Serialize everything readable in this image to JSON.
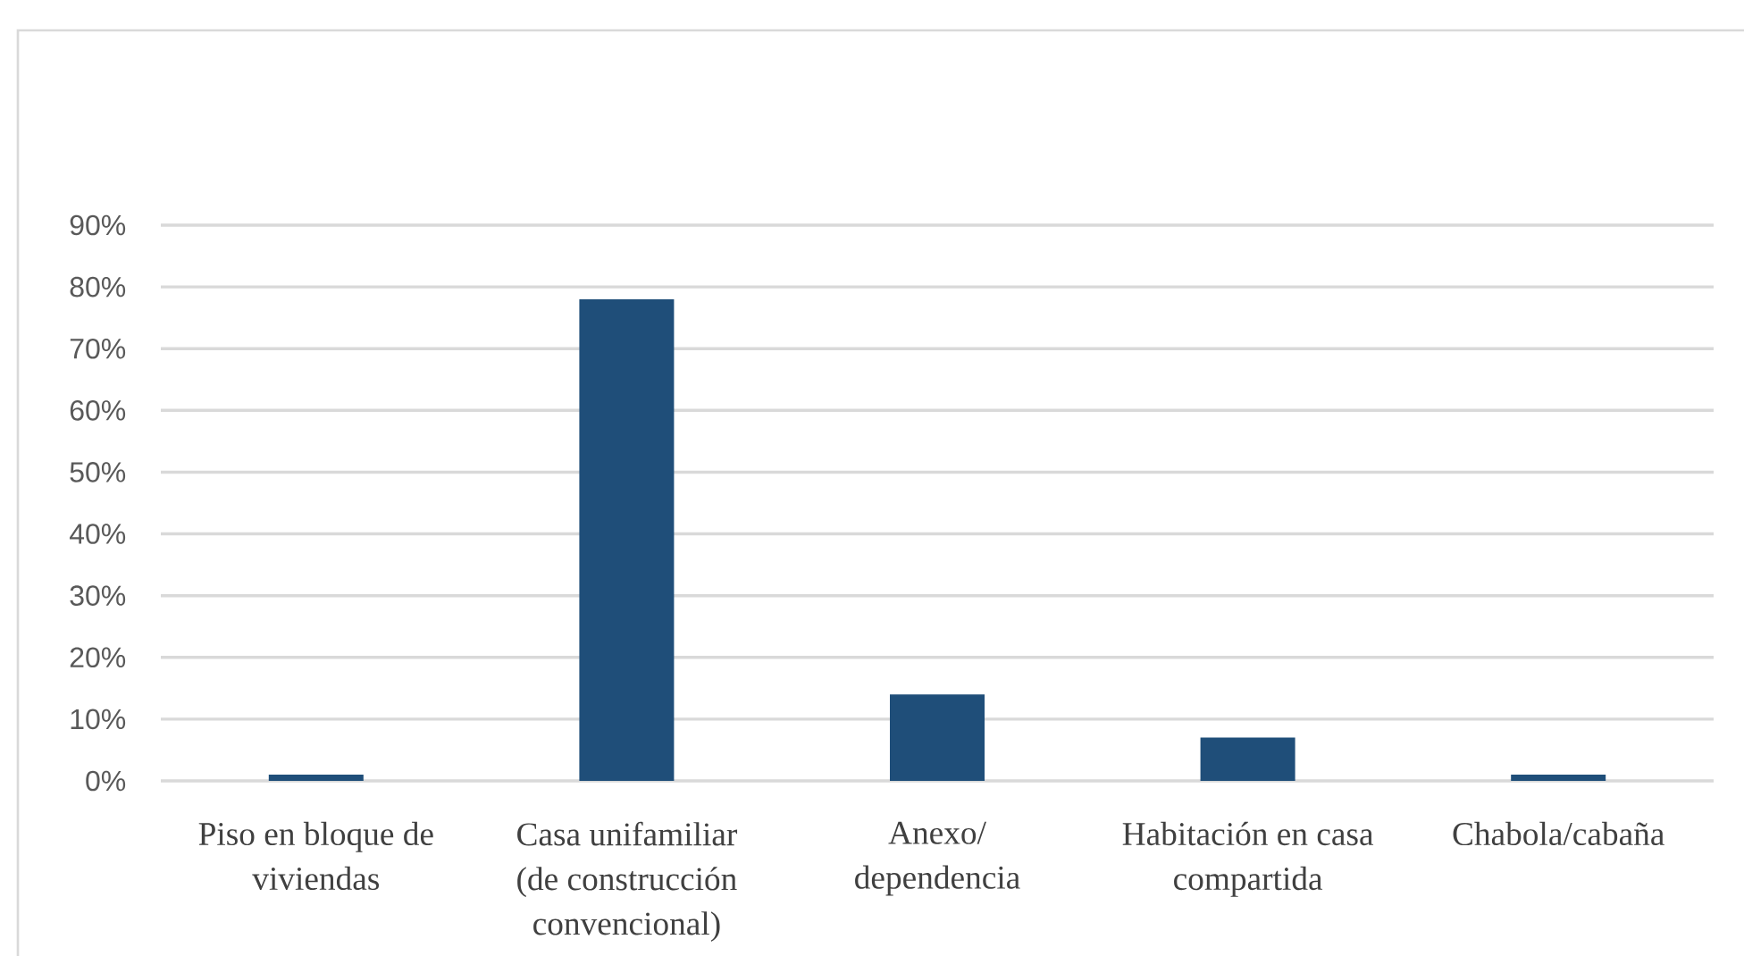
{
  "chart_data": {
    "type": "bar",
    "categories": [
      "Piso en bloque de viviendas",
      "Casa unifamiliar (de construcción convencional)",
      "Anexo/ dependencia",
      "Habitación en casa compartida",
      "Chabola/cabaña"
    ],
    "values": [
      1,
      78,
      14,
      7,
      1
    ],
    "color": "#1f4e79",
    "ylim": [
      0,
      90
    ],
    "yticks": [
      {
        "value": 0,
        "label": "0%"
      },
      {
        "value": 10,
        "label": "10%"
      },
      {
        "value": 20,
        "label": "20%"
      },
      {
        "value": 30,
        "label": "30%"
      },
      {
        "value": 40,
        "label": "40%"
      },
      {
        "value": 50,
        "label": "50%"
      },
      {
        "value": 60,
        "label": "60%"
      },
      {
        "value": 70,
        "label": "70%"
      },
      {
        "value": 80,
        "label": "80%"
      },
      {
        "value": 90,
        "label": "90%"
      }
    ],
    "grid": "y"
  }
}
